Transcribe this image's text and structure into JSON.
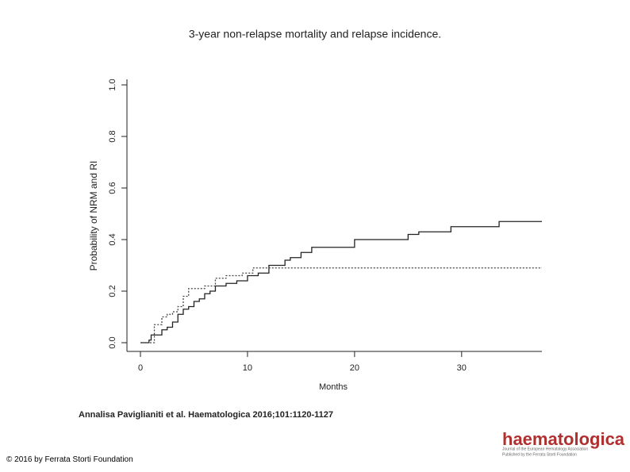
{
  "chart_data": {
    "type": "step",
    "title": "3-year non-relapse mortality and relapse incidence.",
    "xlabel": "Months",
    "ylabel": "Probability of NRM and RI",
    "xlim": [
      0,
      37.5
    ],
    "ylim": [
      0,
      1
    ],
    "xticks": [
      0,
      10,
      20,
      30
    ],
    "yticks": [
      {
        "value": 0,
        "label": "0.0"
      },
      0.2,
      0.4,
      0.6,
      0.8,
      {
        "value": 1,
        "label": "1.0"
      }
    ],
    "series": [
      {
        "color": "#222222",
        "style": "solid",
        "x": [
          0,
          0.8,
          1,
          2,
          2.5,
          3,
          3.5,
          4,
          4.5,
          5,
          5.5,
          6,
          6.5,
          7,
          8,
          9,
          10,
          11,
          12,
          13.5,
          14,
          15,
          16,
          20,
          25,
          26,
          29,
          33.5,
          37.5
        ],
        "values": [
          0,
          0.01,
          0.03,
          0.05,
          0.06,
          0.08,
          0.11,
          0.13,
          0.14,
          0.16,
          0.17,
          0.19,
          0.2,
          0.22,
          0.23,
          0.24,
          0.26,
          0.27,
          0.3,
          0.32,
          0.33,
          0.35,
          0.37,
          0.4,
          0.42,
          0.43,
          0.45,
          0.47,
          0.47
        ]
      },
      {
        "color": "#444444",
        "style": "dotted",
        "x": [
          0,
          1.3,
          2,
          2.5,
          3,
          3.5,
          4,
          4.5,
          6,
          7,
          8,
          9.5,
          10.5,
          37.5
        ],
        "values": [
          0,
          0.07,
          0.1,
          0.11,
          0.12,
          0.14,
          0.18,
          0.21,
          0.22,
          0.25,
          0.26,
          0.27,
          0.29,
          0.29
        ]
      }
    ]
  },
  "citation": "Annalisa Paviglianiti et al. Haematologica 2016;101:1120-1127",
  "copyright": "© 2016 by Ferrata Storti Foundation",
  "logo": {
    "name": "haematologica",
    "tagline1": "Journal of the European Hematology Association",
    "tagline2": "Published by the Ferrata Storti Foundation"
  }
}
